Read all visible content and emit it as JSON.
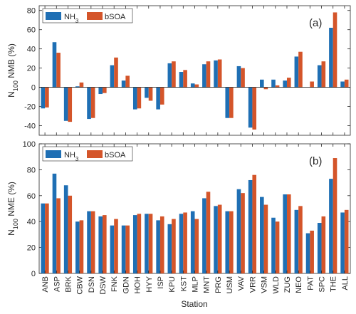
{
  "figure": {
    "xlabel": "Station",
    "colors": {
      "NH3": "#1f6fb4",
      "bSOA": "#d4552a",
      "zero_line": "#000000"
    }
  },
  "chart_data": [
    {
      "type": "bar",
      "panel_label": "(a)",
      "ylabel_main": "N",
      "ylabel_sub": "100",
      "ylabel_rest": " NMB (%)",
      "ylim": [
        -50,
        85
      ],
      "yticks": [
        -40,
        -20,
        0,
        20,
        40,
        60,
        80
      ],
      "legend_position": "top-left",
      "grid": false,
      "categories": [
        "ANB",
        "ASP",
        "BRK",
        "CBW",
        "DSN",
        "DSW",
        "FNK",
        "GDN",
        "HOH",
        "HYY",
        "ISP",
        "KPU",
        "KST",
        "MLP",
        "MNT",
        "PRG",
        "USM",
        "VAV",
        "VRR",
        "VSM",
        "WLD",
        "ZUG",
        "NEO",
        "PAT",
        "SPC",
        "THE",
        "ALL"
      ],
      "series": [
        {
          "name": "NH",
          "name_sub": "3",
          "key": "NH3",
          "values": [
            -22,
            47,
            -35,
            1,
            -33,
            -7,
            23,
            7,
            -23,
            -11,
            -23,
            25,
            16,
            4,
            24,
            28,
            -32,
            22,
            -42,
            8,
            8,
            7,
            32,
            0,
            23,
            62,
            6
          ]
        },
        {
          "name": "bSOA",
          "key": "bSOA",
          "values": [
            -21,
            36,
            -36,
            5,
            -32,
            -6,
            31,
            12,
            -22,
            -14,
            -18,
            27,
            18,
            3,
            27,
            29,
            -32,
            20,
            -44,
            -2,
            2,
            10,
            37,
            6,
            27,
            78,
            8
          ]
        }
      ]
    },
    {
      "type": "bar",
      "panel_label": "(b)",
      "ylabel_main": "N",
      "ylabel_sub": "100",
      "ylabel_rest": " NME (%)",
      "ylim": [
        0,
        100
      ],
      "yticks": [
        0,
        20,
        40,
        60,
        80,
        100
      ],
      "legend_position": "top-left",
      "grid": false,
      "categories": [
        "ANB",
        "ASP",
        "BRK",
        "CBW",
        "DSN",
        "DSW",
        "FNK",
        "GDN",
        "HOH",
        "HYY",
        "ISP",
        "KPU",
        "KST",
        "MLP",
        "MNT",
        "PRG",
        "USM",
        "VAV",
        "VRR",
        "VSM",
        "WLD",
        "ZUG",
        "NEO",
        "PAT",
        "SPC",
        "THE",
        "ALL"
      ],
      "series": [
        {
          "name": "NH",
          "name_sub": "3",
          "key": "NH3",
          "values": [
            54,
            77,
            68,
            40,
            48,
            44,
            37,
            37,
            45,
            46,
            41,
            38,
            46,
            48,
            58,
            52,
            48,
            65,
            72,
            59,
            43,
            61,
            49,
            31,
            39,
            73,
            47
          ]
        },
        {
          "name": "bSOA",
          "key": "bSOA",
          "values": [
            54,
            58,
            60,
            41,
            48,
            45,
            42,
            37,
            46,
            46,
            44,
            42,
            47,
            42,
            63,
            53,
            48,
            62,
            76,
            53,
            40,
            61,
            52,
            33,
            44,
            89,
            49
          ]
        }
      ]
    }
  ]
}
